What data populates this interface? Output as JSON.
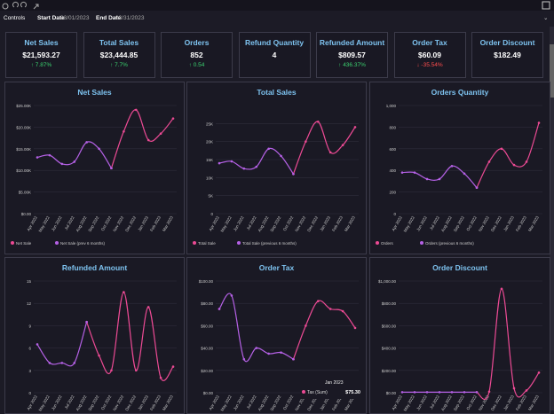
{
  "header": {
    "title": "Controls",
    "start_label": "Start Date",
    "start_value": "03/01/2023",
    "end_label": "End Date",
    "end_value": "03/31/2023"
  },
  "kpis": [
    {
      "title": "Net Sales",
      "value": "$21,593.27",
      "change": "↑ 7.87%",
      "trend": "up"
    },
    {
      "title": "Total Sales",
      "value": "$23,444.85",
      "change": "↑ 7.7%",
      "trend": "up"
    },
    {
      "title": "Orders",
      "value": "852",
      "change": "↑ 0.54",
      "trend": "up"
    },
    {
      "title": "Refund Quantity",
      "value": "4"
    },
    {
      "title": "Refunded Amount",
      "value": "$809.57",
      "change": "↑ 436.37%",
      "trend": "up"
    },
    {
      "title": "Order Tax",
      "value": "$60.09",
      "change": "↓ -35.54%",
      "trend": "down"
    },
    {
      "title": "Order Discount",
      "value": "$182.49"
    }
  ],
  "chart_data": [
    {
      "type": "line",
      "title": "Net Sales",
      "categories": [
        "Apr 2022",
        "May 2022",
        "Jun 2022",
        "Jul 2022",
        "Aug 2022",
        "Sep 2022",
        "Oct 2022",
        "Nov 2022",
        "Dec 2022",
        "Jan 2023",
        "Feb 2023",
        "Mar 2023"
      ],
      "series": [
        {
          "name": "Net Sale",
          "color": "#ec4a94",
          "values": [
            null,
            null,
            null,
            null,
            null,
            null,
            10500,
            19000,
            24000,
            17000,
            18500,
            22000
          ]
        },
        {
          "name": "Net Sale (prev 6 months)",
          "color": "#b561e6",
          "values": [
            13000,
            13500,
            11500,
            12000,
            16500,
            15000,
            10500,
            null,
            null,
            null,
            null,
            null
          ]
        }
      ],
      "ylim": [
        0,
        25000
      ],
      "yticks": [
        {
          "value": 0,
          "label": "$0.00"
        },
        {
          "value": 5000,
          "label": "$5.00K"
        },
        {
          "value": 10000,
          "label": "$10.00K"
        },
        {
          "value": 15000,
          "label": "$15.00K"
        },
        {
          "value": 20000,
          "label": "$20.00K"
        },
        {
          "value": 25000,
          "label": "$25.00K"
        }
      ]
    },
    {
      "type": "line",
      "title": "Total Sales",
      "categories": [
        "Apr 2022",
        "May 2022",
        "Jun 2022",
        "Jul 2022",
        "Aug 2022",
        "Sep 2022",
        "Oct 2022",
        "Nov 2022",
        "Dec 2022",
        "Jan 2023",
        "Feb 2023",
        "Mar 2023"
      ],
      "series": [
        {
          "name": "Total Sale",
          "color": "#ec4a94",
          "values": [
            null,
            null,
            null,
            null,
            null,
            null,
            11000,
            20000,
            25500,
            17000,
            19000,
            24000
          ]
        },
        {
          "name": "Total Sale (previous 6 months)",
          "color": "#b561e6",
          "values": [
            14000,
            14500,
            12500,
            13000,
            18000,
            16000,
            11000,
            null,
            null,
            null,
            null,
            null
          ]
        }
      ],
      "ylim": [
        0,
        30000
      ],
      "yticks": [
        0,
        {
          "value": 5000,
          "label": "5K"
        },
        {
          "value": 10000,
          "label": "10K"
        },
        {
          "value": 15000,
          "label": "15K"
        },
        {
          "value": 20000,
          "label": "20K"
        },
        {
          "value": 25000,
          "label": "25K"
        }
      ]
    },
    {
      "type": "line",
      "title": "Orders Quantity",
      "categories": [
        "Apr 2022",
        "May 2022",
        "Jun 2022",
        "Jul 2022",
        "Aug 2022",
        "Sep 2022",
        "Oct 2022",
        "Nov 2022",
        "Dec 2022",
        "Jan 2023",
        "Feb 2023",
        "Mar 2023"
      ],
      "series": [
        {
          "name": "Orders",
          "color": "#ec4a94",
          "values": [
            null,
            null,
            null,
            null,
            null,
            null,
            240,
            480,
            600,
            450,
            480,
            840
          ]
        },
        {
          "name": "Orders (previous 6 months)",
          "color": "#b561e6",
          "values": [
            380,
            380,
            320,
            320,
            440,
            370,
            240,
            null,
            null,
            null,
            null,
            null
          ]
        }
      ],
      "ylim": [
        0,
        1000
      ],
      "yticks": [
        0,
        200,
        400,
        600,
        800,
        {
          "value": 1000,
          "label": "1,000"
        }
      ]
    },
    {
      "type": "line",
      "title": "Refunded Amount",
      "categories": [
        "Apr 2022",
        "May 2022",
        "Jun 2022",
        "Jul 2022",
        "Aug 2022",
        "Sep 2022",
        "Oct 2022",
        "Nov 2022",
        "Dec 2022",
        "Jan 2023",
        "Feb 2023",
        "Mar 2023"
      ],
      "series": [
        {
          "color": "#ec4a94",
          "values": [
            null,
            null,
            null,
            null,
            9.5,
            5,
            3,
            13.5,
            3,
            11.5,
            2,
            3.5
          ]
        },
        {
          "color": "#b561e6",
          "values": [
            6.5,
            4,
            4,
            4,
            9.5,
            null,
            null,
            null,
            null,
            null,
            null,
            null
          ]
        }
      ],
      "ylim": [
        0,
        15
      ],
      "yticks": [
        0,
        3,
        6,
        9,
        12,
        15
      ]
    },
    {
      "type": "line",
      "title": "Order Tax",
      "categories": [
        "Apr 2022",
        "May 2022",
        "Jun 2022",
        "Jul 2022",
        "Aug 2022",
        "Sep 2022",
        "Oct 2022",
        "Nov 2022",
        "Dec 2022",
        "Jan 2023",
        "Feb 2023",
        "Mar 2023"
      ],
      "series": [
        {
          "color": "#ec4a94",
          "values": [
            75,
            null,
            null,
            null,
            null,
            null,
            30,
            60,
            82,
            75,
            73,
            58
          ]
        },
        {
          "color": "#b561e6",
          "values": [
            75,
            87,
            30,
            40,
            35,
            36,
            30,
            null,
            null,
            null,
            null,
            null
          ]
        }
      ],
      "ylim": [
        0,
        100
      ],
      "yticks": [
        {
          "value": 0,
          "label": "$0.00"
        },
        {
          "value": 20,
          "label": "$20.00"
        },
        {
          "value": 40,
          "label": "$40.00"
        },
        {
          "value": 60,
          "label": "$60.00"
        },
        {
          "value": 80,
          "label": "$80.00"
        },
        {
          "value": 100,
          "label": "$100.00"
        }
      ],
      "tooltip": {
        "title": "Jan 2023",
        "label": "Tax (Sum)",
        "value": "$75.30"
      }
    },
    {
      "type": "line",
      "title": "Order Discount",
      "categories": [
        "Apr 2022",
        "May 2022",
        "Jun 2022",
        "Jul 2022",
        "Aug 2022",
        "Sep 2022",
        "Oct 2022",
        "Nov 2022",
        "Dec 2022",
        "Jan 2023",
        "Feb 2023",
        "Mar 2023"
      ],
      "series": [
        {
          "color": "#ec4a94",
          "values": [
            null,
            null,
            null,
            null,
            null,
            null,
            5,
            10,
            930,
            40,
            20,
            180
          ]
        },
        {
          "color": "#b561e6",
          "values": [
            5,
            5,
            5,
            5,
            5,
            5,
            5,
            null,
            null,
            null,
            null,
            null
          ]
        }
      ],
      "ylim": [
        0,
        1000
      ],
      "yticks": [
        {
          "value": 0,
          "label": "$0.00"
        },
        {
          "value": 200,
          "label": "$200.00"
        },
        {
          "value": 400,
          "label": "$400.00"
        },
        {
          "value": 600,
          "label": "$600.00"
        },
        {
          "value": 800,
          "label": "$800.00"
        },
        {
          "value": 1000,
          "label": "$1,000.00"
        }
      ]
    }
  ]
}
